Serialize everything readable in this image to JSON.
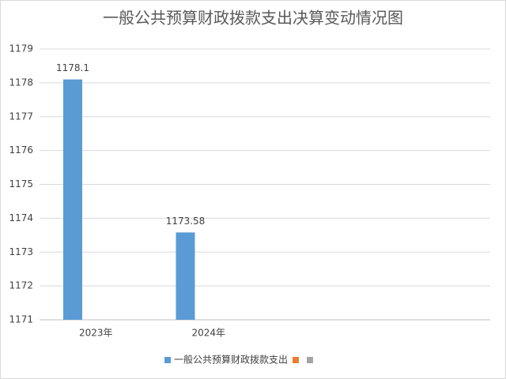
{
  "chart_data": {
    "type": "bar",
    "title": "一般公共预算财政拨款支出决算变动情况图",
    "categories": [
      "2023年",
      "2024年",
      null,
      null
    ],
    "series": [
      {
        "name": "一般公共预算财政拨款支出",
        "color": "#5b9bd5",
        "values": [
          1178.1,
          1173.58,
          null,
          null
        ]
      },
      {
        "color": "#ed7d31",
        "values": [
          null,
          null,
          null,
          null
        ]
      },
      {
        "color": "#a5a5a5",
        "values": [
          null,
          null,
          null,
          null
        ]
      }
    ],
    "ylim": [
      1171,
      1179
    ],
    "yticks": [
      1171,
      1172,
      1173,
      1174,
      1175,
      1176,
      1177,
      1178,
      1179
    ],
    "grid": true,
    "legend": "bottom"
  }
}
